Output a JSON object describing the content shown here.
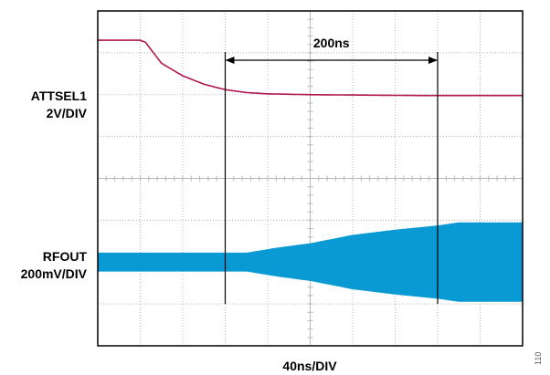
{
  "chart_data": {
    "type": "line",
    "title": "",
    "xlabel": "40ns/DIV",
    "x_unit": "ns",
    "x_range": [
      0,
      400
    ],
    "grid": true,
    "divisions": {
      "x": 10,
      "y": 8
    },
    "channels": [
      {
        "name": "ATTSEL1",
        "scale": "2V/DIV",
        "color": "#b0164f",
        "shape": "exponential decay",
        "x": [
          0,
          40,
          45,
          60,
          80,
          100,
          120,
          140,
          160,
          200,
          250,
          300,
          350,
          400
        ],
        "y_div": [
          3.3,
          3.3,
          3.25,
          2.75,
          2.45,
          2.25,
          2.12,
          2.05,
          2.02,
          2.0,
          1.99,
          1.98,
          1.98,
          1.98
        ]
      },
      {
        "name": "RFOUT",
        "scale": "200mV/DIV",
        "color": "#0a9ad3",
        "shape": "RF burst envelope",
        "x": [
          0,
          100,
          140,
          170,
          200,
          240,
          280,
          320,
          340,
          360,
          400
        ],
        "envelope_div": [
          0.45,
          0.45,
          0.45,
          0.7,
          0.9,
          1.3,
          1.55,
          1.75,
          1.9,
          1.9,
          1.9
        ]
      }
    ],
    "annotations": [
      {
        "type": "time-span",
        "text": "200ns",
        "x_start": 120,
        "x_end": 320
      }
    ],
    "corner_text": "110"
  }
}
